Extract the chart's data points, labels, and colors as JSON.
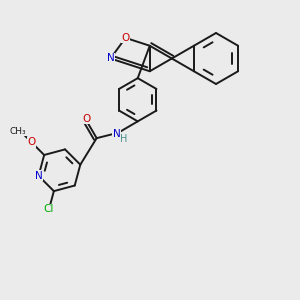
{
  "background_color": "#ebebeb",
  "bond_color": "#1a1a1a",
  "atom_colors": {
    "N": "#0000cc",
    "O": "#cc0000",
    "Cl": "#00aa00",
    "H_teal": "#4a9090",
    "C": "#1a1a1a"
  },
  "figsize": [
    3.0,
    3.0
  ],
  "dpi": 100
}
